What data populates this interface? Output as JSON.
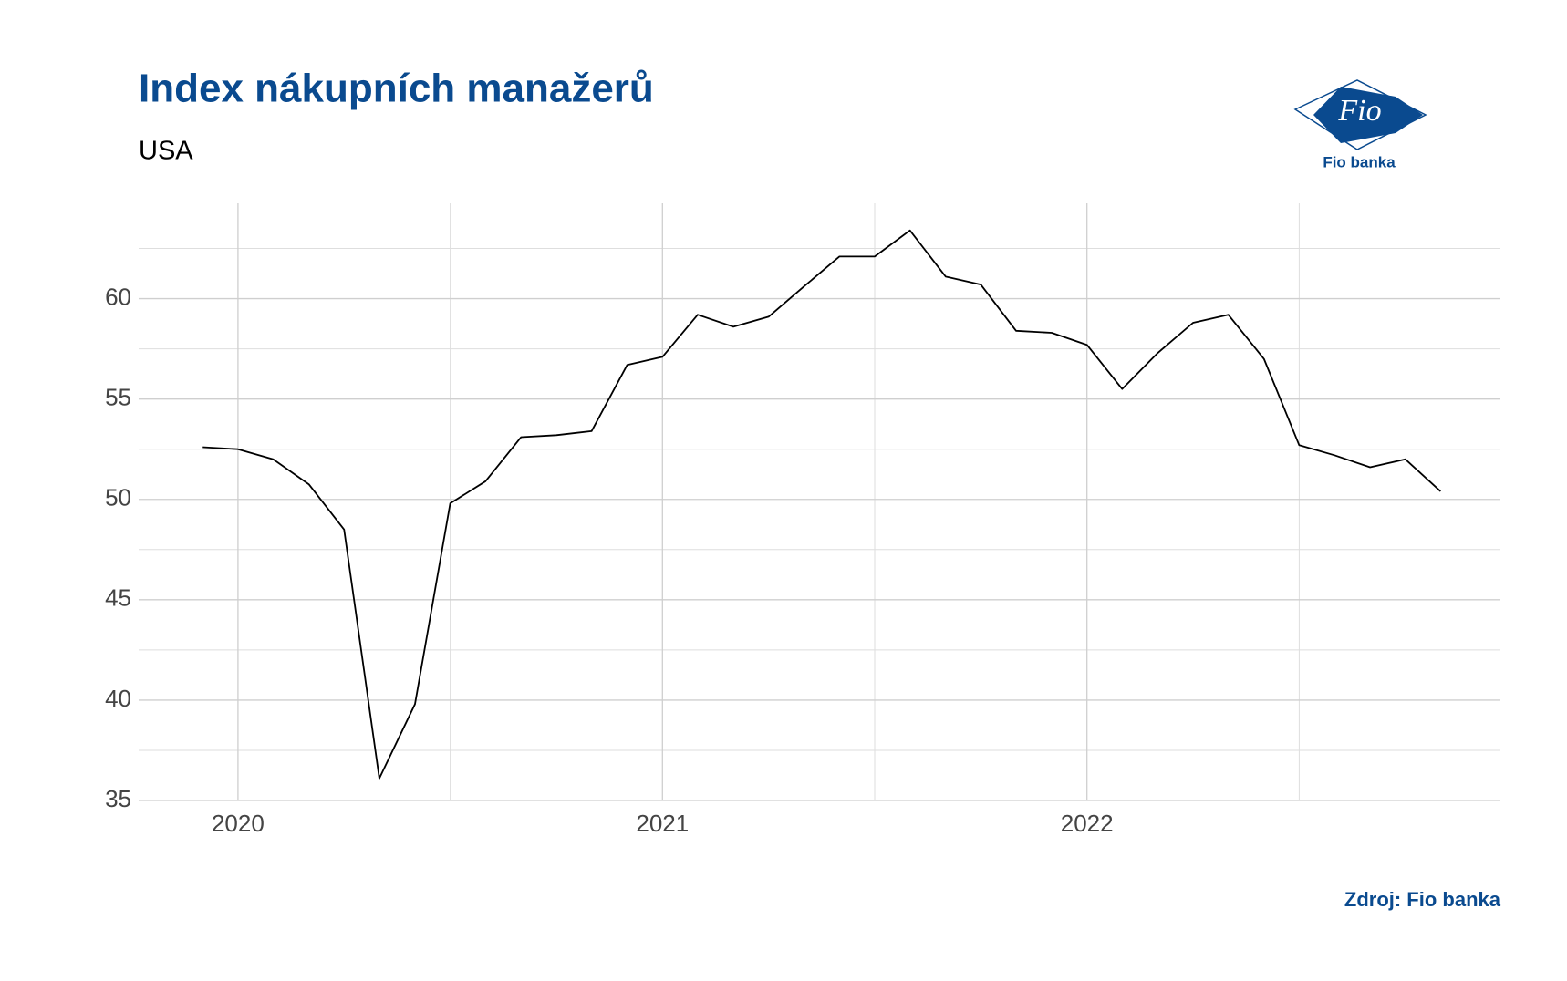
{
  "chart_data": {
    "type": "line",
    "title": "Index nákupních manažerů",
    "subtitle": "USA",
    "source": "Zdroj: Fio banka",
    "x": [
      2019.917,
      2020.0,
      2020.083,
      2020.167,
      2020.25,
      2020.333,
      2020.417,
      2020.5,
      2020.583,
      2020.667,
      2020.75,
      2020.833,
      2020.917,
      2021.0,
      2021.083,
      2021.167,
      2021.25,
      2021.333,
      2021.417,
      2021.5,
      2021.583,
      2021.667,
      2021.75,
      2021.833,
      2021.917,
      2022.0,
      2022.083,
      2022.167,
      2022.25,
      2022.333,
      2022.417,
      2022.5,
      2022.583,
      2022.667,
      2022.75,
      2022.833
    ],
    "series": [
      {
        "color": "#000000",
        "values": [
          52.6,
          52.5,
          52.0,
          50.75,
          48.5,
          36.1,
          39.8,
          49.8,
          50.9,
          53.1,
          53.2,
          53.4,
          56.7,
          57.1,
          59.2,
          58.6,
          59.1,
          60.6,
          62.1,
          62.1,
          63.4,
          61.1,
          60.7,
          58.4,
          58.3,
          57.7,
          55.5,
          57.3,
          58.8,
          59.2,
          57.0,
          52.7,
          52.2,
          51.6,
          52.0,
          50.4
        ]
      }
    ],
    "xlim": [
      2019.766,
      2022.974
    ],
    "ylim": [
      35,
      64.75
    ],
    "xticks": [
      2020,
      2021,
      2022
    ],
    "yticks": [
      35,
      40,
      45,
      50,
      55,
      60
    ],
    "x_minor_ticks": [
      2020.5,
      2021.5,
      2022.5
    ],
    "y_minor_ticks": [
      37.5,
      42.5,
      47.5,
      52.5,
      57.5,
      62.5
    ],
    "grid": true
  },
  "logo": {
    "mark": "Fio",
    "caption": "Fio banka"
  }
}
